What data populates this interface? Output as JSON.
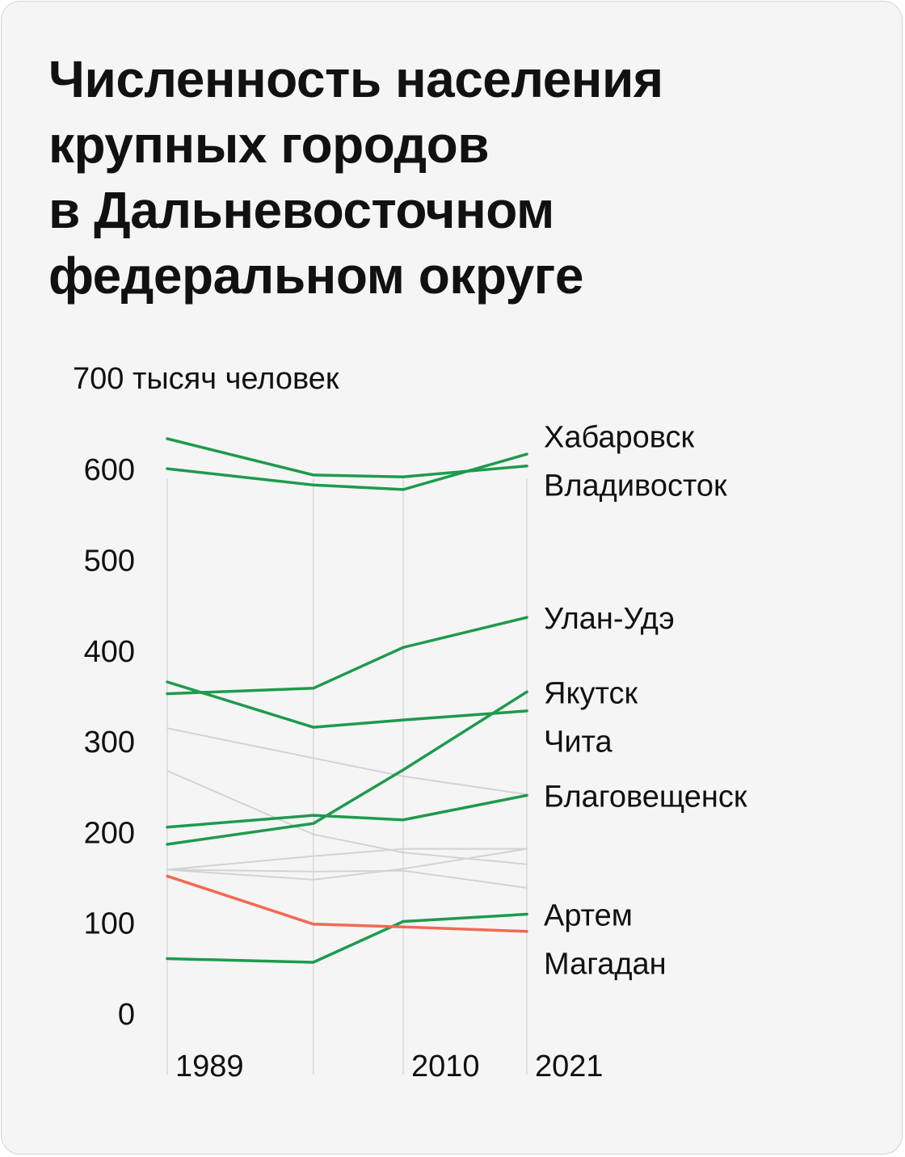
{
  "title_lines": [
    "Численность населения",
    "крупных городов",
    "в Дальневосточном",
    "федеральном округе"
  ],
  "chart_data": {
    "type": "line",
    "title": "Численность населения крупных городов в Дальневосточном федеральном округе",
    "ylabel": "700 тысяч человек",
    "y_ticks": [
      0,
      100,
      200,
      300,
      400,
      500,
      600
    ],
    "ylim": [
      0,
      700
    ],
    "x": [
      1989,
      2002,
      2010,
      2021
    ],
    "x_tick_labels": [
      "1989",
      "",
      "2010",
      "2021"
    ],
    "colors": {
      "green": "#1e9a4d",
      "red": "#f06a55",
      "gray": "#d3d3d3",
      "grid": "#d9d9d9",
      "text": "#111111"
    },
    "series": [
      {
        "name": "Хабаровск",
        "values": [
          601,
          583,
          578,
          617
        ],
        "color": "green",
        "label": "Хабаровск"
      },
      {
        "name": "Владивосток",
        "values": [
          634,
          594,
          592,
          604
        ],
        "color": "green",
        "label": "Владивосток"
      },
      {
        "name": "Улан-Удэ",
        "values": [
          353,
          359,
          404,
          437
        ],
        "color": "green",
        "label": "Улан-Удэ"
      },
      {
        "name": "Якутск",
        "values": [
          187,
          210,
          269,
          355
        ],
        "color": "green",
        "label": "Якутск"
      },
      {
        "name": "Чита",
        "values": [
          366,
          316,
          324,
          334
        ],
        "color": "green",
        "label": "Чита"
      },
      {
        "name": "Благовещенск",
        "values": [
          206,
          219,
          214,
          241
        ],
        "color": "green",
        "label": "Благовещенск"
      },
      {
        "name": "Артем",
        "values": [
          61,
          57,
          102,
          110
        ],
        "color": "green",
        "label": "Артем"
      },
      {
        "name": "Магадан",
        "values": [
          152,
          99,
          96,
          91
        ],
        "color": "red",
        "label": "Магадан"
      },
      {
        "name": "other-1",
        "values": [
          315,
          282,
          262,
          242
        ],
        "color": "gray",
        "label": ""
      },
      {
        "name": "other-2",
        "values": [
          268,
          198,
          178,
          165
        ],
        "color": "gray",
        "label": ""
      },
      {
        "name": "other-3",
        "values": [
          159,
          174,
          182,
          182
        ],
        "color": "gray",
        "label": ""
      },
      {
        "name": "other-4",
        "values": [
          159,
          148,
          160,
          182
        ],
        "color": "gray",
        "label": ""
      },
      {
        "name": "other-5",
        "values": [
          159,
          157,
          158,
          139
        ],
        "color": "gray",
        "label": ""
      }
    ]
  }
}
